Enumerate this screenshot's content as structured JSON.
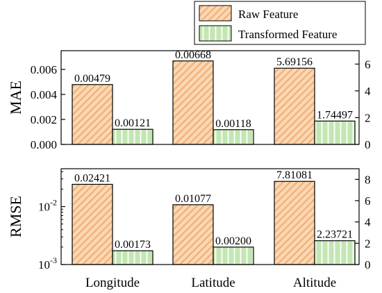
{
  "legend": {
    "raw_label": "Raw Feature",
    "transformed_label": "Transformed Feature"
  },
  "colors": {
    "raw_fill": "#fbd8b4",
    "raw_hatch": "#f2b27a",
    "transformed_fill": "#c3e6b3",
    "transformed_hatch": "#ffffff",
    "frame": "#000000"
  },
  "chart_data": [
    {
      "type": "bar",
      "ylabel": "MAE",
      "categories": [
        "Longitude",
        "Latitude",
        "Altitude"
      ],
      "series": [
        {
          "name": "Raw Feature",
          "values": [
            0.00479,
            0.00668,
            5.69156
          ],
          "labels": [
            "0.00479",
            "0.00668",
            "5.69156"
          ]
        },
        {
          "name": "Transformed Feature",
          "values": [
            0.00121,
            0.00118,
            1.74497
          ],
          "labels": [
            "0.00121",
            "0.00118",
            "1.74497"
          ]
        }
      ],
      "axis_assignment": [
        "left",
        "left",
        "right"
      ],
      "left_axis": {
        "scale": "linear",
        "range": [
          0,
          0.0075
        ],
        "ticks": [
          0,
          0.002,
          0.004,
          0.006
        ],
        "tick_labels": [
          "0.000",
          "0.002",
          "0.004",
          "0.006"
        ]
      },
      "right_axis": {
        "scale": "linear",
        "range": [
          0,
          7
        ],
        "ticks": [
          0,
          2,
          4,
          6
        ],
        "tick_labels": [
          "0",
          "2",
          "4",
          "6"
        ]
      }
    },
    {
      "type": "bar",
      "ylabel": "RMSE",
      "categories": [
        "Longitude",
        "Latitude",
        "Altitude"
      ],
      "series": [
        {
          "name": "Raw Feature",
          "values": [
            0.02421,
            0.01077,
            7.81081
          ],
          "labels": [
            "0.02421",
            "0.01077",
            "7.81081"
          ]
        },
        {
          "name": "Transformed Feature",
          "values": [
            0.00173,
            0.002,
            2.23721
          ],
          "labels": [
            "0.00173",
            "0.00200",
            "2.23721"
          ]
        }
      ],
      "axis_assignment": [
        "left",
        "left",
        "right"
      ],
      "left_axis": {
        "scale": "log",
        "range": [
          0.001,
          0.045
        ],
        "ticks": [
          0.001,
          0.01
        ],
        "tick_labels": [
          [
            "10",
            "-3"
          ],
          [
            "10",
            "-2"
          ]
        ]
      },
      "right_axis": {
        "scale": "linear",
        "range": [
          0,
          9
        ],
        "ticks": [
          0,
          2,
          4,
          6,
          8
        ],
        "tick_labels": [
          "0",
          "2",
          "4",
          "6",
          "8"
        ]
      }
    }
  ]
}
